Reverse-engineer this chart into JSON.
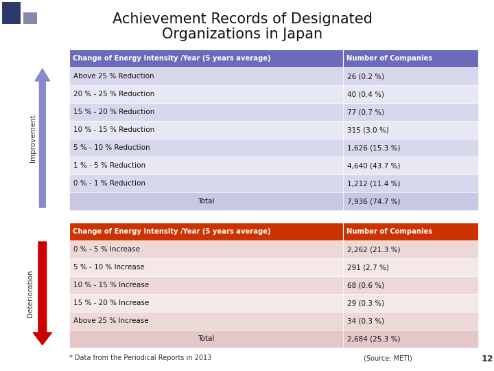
{
  "title_line1": "Achievement Records of Designated",
  "title_line2": "Organizations in Japan",
  "improvement_header": [
    "Change of Energy Intensity /Year (5 years average)",
    "Number of Companies"
  ],
  "improvement_rows": [
    [
      "Above 25 % Reduction",
      "26 (0.2 %)"
    ],
    [
      "20 % - 25 % Reduction",
      "40 (0.4 %)"
    ],
    [
      "15 % - 20 % Reduction",
      "77 (0.7 %)"
    ],
    [
      "10 % - 15 % Reduction",
      "315 (3.0 %)"
    ],
    [
      "5 % - 10 % Reduction",
      "1,626 (15.3 %)"
    ],
    [
      "1 % - 5 % Reduction",
      "4,640 (43.7 %)"
    ],
    [
      "0 % - 1 % Reduction",
      "1,212 (11.4 %)"
    ],
    [
      "Total",
      "7,936 (74.7 %)"
    ]
  ],
  "deterioration_header": [
    "Change of Energy Intensity /Year (5 years average)",
    "Number of Companies"
  ],
  "deterioration_rows": [
    [
      "0 % - 5 % Increase",
      "2,262 (21.3 %)"
    ],
    [
      "5 % - 10 % Increase",
      "291 (2.7 %)"
    ],
    [
      "10 % - 15 % Increase",
      "68 (0.6 %)"
    ],
    [
      "15 % - 20 % Increase",
      "29 (0.3 %)"
    ],
    [
      "Above 25 % Increase",
      "34 (0.3 %)"
    ],
    [
      "Total",
      "2,684 (25.3 %)"
    ]
  ],
  "footer_left": "* Data from the Periodical Reports in 2013",
  "footer_right": "(Source: METI)",
  "footer_num": "12",
  "improvement_header_color": "#6B6BBB",
  "improvement_row_color_odd": "#D8D8ED",
  "improvement_row_color_even": "#E8E8F5",
  "improvement_total_color": "#C8C8E4",
  "deterioration_header_color": "#CC3300",
  "deterioration_row_color_odd": "#EDD8D8",
  "deterioration_row_color_even": "#F5E8E8",
  "deterioration_total_color": "#E4C8C8",
  "header_text_color": "#FFFFFF",
  "bg_color": "#FFFFFF",
  "title_color": "#111111",
  "improvement_arrow_color": "#8888CC",
  "deterioration_arrow_color": "#CC0000",
  "improvement_label": "Improvement",
  "deterioration_label": "Deterioration",
  "deco_sq1_color": "#2B3A6B",
  "deco_sq2_color": "#8888AA"
}
